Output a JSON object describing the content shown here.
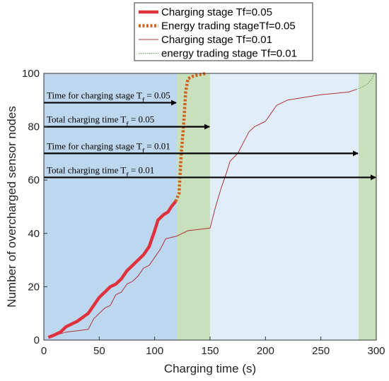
{
  "chart_data": {
    "type": "line",
    "xlabel": "Charging time (s)",
    "ylabel": "Number of overcharged sensor nodes",
    "xlim": [
      0,
      300
    ],
    "ylim": [
      0,
      100
    ],
    "xticks": [
      0,
      50,
      100,
      150,
      200,
      250,
      300
    ],
    "yticks": [
      0,
      20,
      40,
      60,
      80,
      100
    ],
    "grid": false,
    "legend_position": "top",
    "colors": {
      "charging_region_tf005": "#bcd7ee",
      "charging_region_tf001": "#e1eef8",
      "trading_region": "#c8e0bc",
      "thick_red": "#e0323c",
      "dotted_orange": "#d2611f",
      "thin_red": "#b0303a",
      "thin_green": "#5a9a4a"
    },
    "shaded_regions": [
      {
        "from": 0,
        "to": 120,
        "color": "#bcd7ee"
      },
      {
        "from": 120,
        "to": 150,
        "color": "#c8e0bc"
      },
      {
        "from": 150,
        "to": 284,
        "color": "#e1eef8"
      },
      {
        "from": 284,
        "to": 300,
        "color": "#c8e0bc"
      }
    ],
    "series": [
      {
        "name": "Charging stage Tf=0.05",
        "style": "solid-thick",
        "color": "#e0323c",
        "points": [
          [
            4,
            1
          ],
          [
            10,
            2
          ],
          [
            15,
            3
          ],
          [
            20,
            5
          ],
          [
            30,
            7
          ],
          [
            40,
            10
          ],
          [
            45,
            13
          ],
          [
            50,
            16
          ],
          [
            55,
            18
          ],
          [
            60,
            20
          ],
          [
            65,
            21
          ],
          [
            70,
            23
          ],
          [
            75,
            26
          ],
          [
            80,
            28
          ],
          [
            85,
            30
          ],
          [
            90,
            32
          ],
          [
            95,
            35
          ],
          [
            100,
            41
          ],
          [
            103,
            45
          ],
          [
            108,
            47
          ],
          [
            112,
            48
          ],
          [
            115,
            50
          ],
          [
            119,
            52
          ]
        ]
      },
      {
        "name": "Energy trading stageTf=0.05",
        "style": "dotted-thick",
        "color": "#d2611f",
        "points": [
          [
            119,
            52
          ],
          [
            122,
            55
          ],
          [
            124,
            70
          ],
          [
            126,
            80
          ],
          [
            128,
            93
          ],
          [
            130,
            98
          ],
          [
            135,
            99
          ],
          [
            140,
            99.5
          ],
          [
            147,
            100
          ]
        ]
      },
      {
        "name": "Charging stage Tf=0.01",
        "style": "solid-thin",
        "color": "#b0303a",
        "points": [
          [
            4,
            1
          ],
          [
            20,
            3
          ],
          [
            40,
            4
          ],
          [
            45,
            8
          ],
          [
            50,
            10
          ],
          [
            55,
            12
          ],
          [
            60,
            13
          ],
          [
            65,
            17
          ],
          [
            70,
            18
          ],
          [
            75,
            21
          ],
          [
            80,
            22
          ],
          [
            85,
            24
          ],
          [
            90,
            27
          ],
          [
            95,
            28
          ],
          [
            100,
            31
          ],
          [
            105,
            34
          ],
          [
            110,
            38
          ],
          [
            120,
            39
          ],
          [
            125,
            40
          ],
          [
            130,
            41
          ],
          [
            150,
            42
          ],
          [
            155,
            50
          ],
          [
            160,
            57
          ],
          [
            165,
            63
          ],
          [
            168,
            67
          ],
          [
            175,
            70
          ],
          [
            180,
            74
          ],
          [
            185,
            78
          ],
          [
            190,
            80
          ],
          [
            200,
            82
          ],
          [
            205,
            85
          ],
          [
            210,
            88
          ],
          [
            215,
            89
          ],
          [
            220,
            90
          ],
          [
            250,
            92
          ],
          [
            275,
            93
          ],
          [
            282,
            94
          ]
        ]
      },
      {
        "name": "energy trading stage Tf=0.01",
        "style": "dotted-thin",
        "color": "#5a9a4a",
        "points": [
          [
            282,
            94
          ],
          [
            288,
            95
          ],
          [
            292,
            96
          ],
          [
            296,
            98
          ],
          [
            298,
            100
          ]
        ]
      }
    ],
    "annotations": [
      {
        "text": "Time for charging stage T",
        "sub": "f",
        "suffix": " = 0.05",
        "y": 89,
        "x_end": 120
      },
      {
        "text": "Total charging time T",
        "sub": "f",
        "suffix": " = 0.05",
        "y": 80,
        "x_end": 150
      },
      {
        "text": "Time for charging stage T",
        "sub": "f",
        "suffix": " = 0.01",
        "y": 70,
        "x_end": 284
      },
      {
        "text": "Total charging time T",
        "sub": "f",
        "suffix": " = 0.01",
        "y": 61,
        "x_end": 300
      }
    ]
  }
}
